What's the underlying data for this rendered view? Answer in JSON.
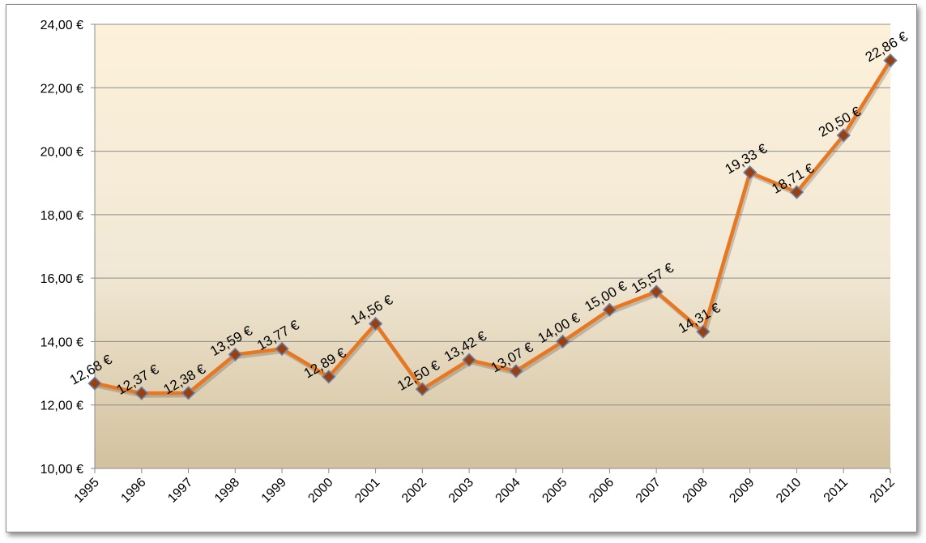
{
  "chart_data": {
    "type": "line",
    "title": "",
    "xlabel": "",
    "ylabel": "",
    "categories": [
      "1995",
      "1996",
      "1997",
      "1998",
      "1999",
      "2000",
      "2001",
      "2002",
      "2003",
      "2004",
      "2005",
      "2006",
      "2007",
      "2008",
      "2009",
      "2010",
      "2011",
      "2012"
    ],
    "values": [
      12.68,
      12.37,
      12.38,
      13.59,
      13.77,
      12.89,
      14.56,
      12.5,
      13.42,
      13.07,
      14.0,
      15.0,
      15.57,
      14.31,
      19.33,
      18.71,
      20.5,
      22.86
    ],
    "data_labels": [
      "12,68 €",
      "12,37 €",
      "12,38 €",
      "13,59 €",
      "13,77 €",
      "12,89 €",
      "14,56 €",
      "12,50 €",
      "13,42 €",
      "13,07 €",
      "14,00 €",
      "15,00 €",
      "15,57 €",
      "14,31 €",
      "19,33 €",
      "18,71 €",
      "20,50 €",
      "22,86 €"
    ],
    "yticks": [
      10,
      12,
      14,
      16,
      18,
      20,
      22,
      24
    ],
    "ytick_labels": [
      "10,00 €",
      "12,00 €",
      "14,00 €",
      "16,00 €",
      "18,00 €",
      "20,00 €",
      "22,00 €",
      "24,00 €"
    ],
    "ylim": [
      10,
      24
    ],
    "grid": true,
    "legend": "none",
    "colors": {
      "line": "#E87722",
      "marker_fill": "#9A3F0E",
      "marker_stroke": "#6A7FA8",
      "bg_top": "#FDF1DA",
      "bg_mid": "#F1E8D5",
      "bg_bottom": "#D3C19D",
      "grid": "#8C8C8C"
    }
  }
}
